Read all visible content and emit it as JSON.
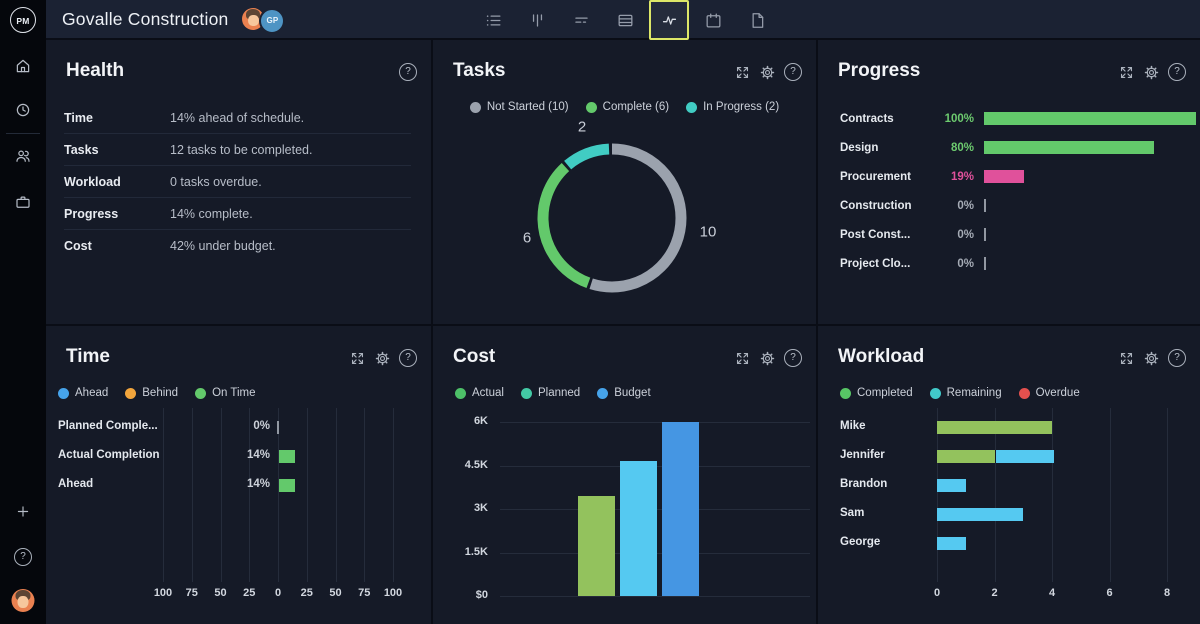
{
  "ui": {
    "help_glyph": "?"
  },
  "app": {
    "logo_text": "PM",
    "title": "Govalle Construction",
    "avatars": {
      "gp_initials": "GP"
    },
    "nav_tabs": [
      {
        "icon": "list-icon",
        "active": false
      },
      {
        "icon": "columns-icon",
        "active": false
      },
      {
        "icon": "filter-lines-icon",
        "active": false
      },
      {
        "icon": "table-icon",
        "active": false
      },
      {
        "icon": "pulse-icon",
        "active": true
      },
      {
        "icon": "calendar-icon",
        "active": false
      },
      {
        "icon": "document-icon",
        "active": false
      }
    ],
    "sidebar_icons_top": [
      "home-icon",
      "clock-icon",
      "team-icon",
      "briefcase-icon"
    ],
    "sidebar_icons_bottom": [
      "plus-icon",
      "help-icon"
    ]
  },
  "colors": {
    "accent_selected_tab": "#dde768",
    "green": "#63c96b",
    "olive_green": "#93c25d",
    "cyan": "#55c9f1",
    "blue": "#4596e3",
    "teal": "#41ccc3",
    "teal_green": "#43c9a5",
    "gray": "#9ba2ad",
    "pink": "#e0519b",
    "orange": "#f2a53c",
    "red": "#e4504e"
  },
  "health": {
    "title": "Health",
    "rows": [
      {
        "label": "Time",
        "value": "14% ahead of schedule."
      },
      {
        "label": "Tasks",
        "value": "12 tasks to be completed."
      },
      {
        "label": "Workload",
        "value": "0 tasks overdue."
      },
      {
        "label": "Progress",
        "value": "14% complete."
      },
      {
        "label": "Cost",
        "value": "42% under budget."
      }
    ]
  },
  "tasks": {
    "title": "Tasks",
    "chart_data": {
      "type": "donut",
      "total": 18,
      "legend": [
        {
          "label": "Not Started (10)",
          "color": "#9ba2ad"
        },
        {
          "label": "Complete (6)",
          "color": "#63c96b"
        },
        {
          "label": "In Progress (2)",
          "color": "#41ccc3"
        }
      ],
      "segments": [
        {
          "name": "Not Started",
          "value": 10,
          "color": "#9ba2ad"
        },
        {
          "name": "Complete",
          "value": 6,
          "color": "#63c96b"
        },
        {
          "name": "In Progress",
          "value": 2,
          "color": "#41ccc3"
        }
      ],
      "labels": {
        "top": "2",
        "left": "6",
        "right": "10"
      }
    }
  },
  "progress": {
    "title": "Progress",
    "chart_data": {
      "type": "bar",
      "orientation": "horizontal",
      "max": 100,
      "rows": [
        {
          "label": "Contracts",
          "pct": 100,
          "pct_label": "100%",
          "bar_color": "#63c96b",
          "value_color": "#6dcb6f"
        },
        {
          "label": "Design",
          "pct": 80,
          "pct_label": "80%",
          "bar_color": "#63c96b",
          "value_color": "#6dcb6f"
        },
        {
          "label": "Procurement",
          "pct": 19,
          "pct_label": "19%",
          "bar_color": "#e0519b",
          "value_color": "#e0519b"
        },
        {
          "label": "Construction",
          "pct": 0,
          "pct_label": "0%",
          "bar_color": null,
          "value_color": "#a6acb6"
        },
        {
          "label": "Post Const...",
          "pct": 0,
          "pct_label": "0%",
          "bar_color": null,
          "value_color": "#a6acb6"
        },
        {
          "label": "Project Clo...",
          "pct": 0,
          "pct_label": "0%",
          "bar_color": null,
          "value_color": "#a6acb6"
        }
      ]
    }
  },
  "time": {
    "title": "Time",
    "legend": [
      {
        "label": "Ahead",
        "color": "#46a3ea"
      },
      {
        "label": "Behind",
        "color": "#f2a53c"
      },
      {
        "label": "On Time",
        "color": "#63c96b"
      }
    ],
    "chart_data": {
      "type": "bar",
      "orientation": "horizontal",
      "axis_labels": [
        "100",
        "75",
        "50",
        "25",
        "0",
        "25",
        "50",
        "75",
        "100"
      ],
      "rows": [
        {
          "label": "Planned Comple...",
          "value": 0,
          "pct_label": "0%",
          "color": "#63c96b"
        },
        {
          "label": "Actual Completion",
          "value": 14,
          "pct_label": "14%",
          "color": "#63c96b"
        },
        {
          "label": "Ahead",
          "value": 14,
          "pct_label": "14%",
          "color": "#63c96b"
        }
      ]
    }
  },
  "cost": {
    "title": "Cost",
    "legend": [
      {
        "label": "Actual",
        "color": "#4dc068"
      },
      {
        "label": "Planned",
        "color": "#43c9a5"
      },
      {
        "label": "Budget",
        "color": "#46a3ea"
      }
    ],
    "chart_data": {
      "type": "bar",
      "orientation": "vertical",
      "y_ticks": [
        "6K",
        "4.5K",
        "3K",
        "1.5K",
        "$0"
      ],
      "y_max": 6000,
      "series": [
        {
          "name": "Actual",
          "value": 3450,
          "color": "#93c25d"
        },
        {
          "name": "Planned",
          "value": 4650,
          "color": "#55c9f1"
        },
        {
          "name": "Budget",
          "value": 6000,
          "color": "#4596e3"
        }
      ]
    }
  },
  "workload": {
    "title": "Workload",
    "legend": [
      {
        "label": "Completed",
        "color": "#57c565"
      },
      {
        "label": "Remaining",
        "color": "#41c9c9"
      },
      {
        "label": "Overdue",
        "color": "#e4504e"
      }
    ],
    "chart_data": {
      "type": "stacked-bar",
      "orientation": "horizontal",
      "x_ticks": [
        "0",
        "2",
        "4",
        "6",
        "8"
      ],
      "x_max": 8,
      "colors": {
        "completed": "#93c25d",
        "remaining": "#55c9f1"
      },
      "rows": [
        {
          "label": "Mike",
          "completed": 4,
          "remaining": 0
        },
        {
          "label": "Jennifer",
          "completed": 2,
          "remaining": 2
        },
        {
          "label": "Brandon",
          "completed": 0,
          "remaining": 1
        },
        {
          "label": "Sam",
          "completed": 0,
          "remaining": 3
        },
        {
          "label": "George",
          "completed": 0,
          "remaining": 1
        }
      ]
    }
  }
}
